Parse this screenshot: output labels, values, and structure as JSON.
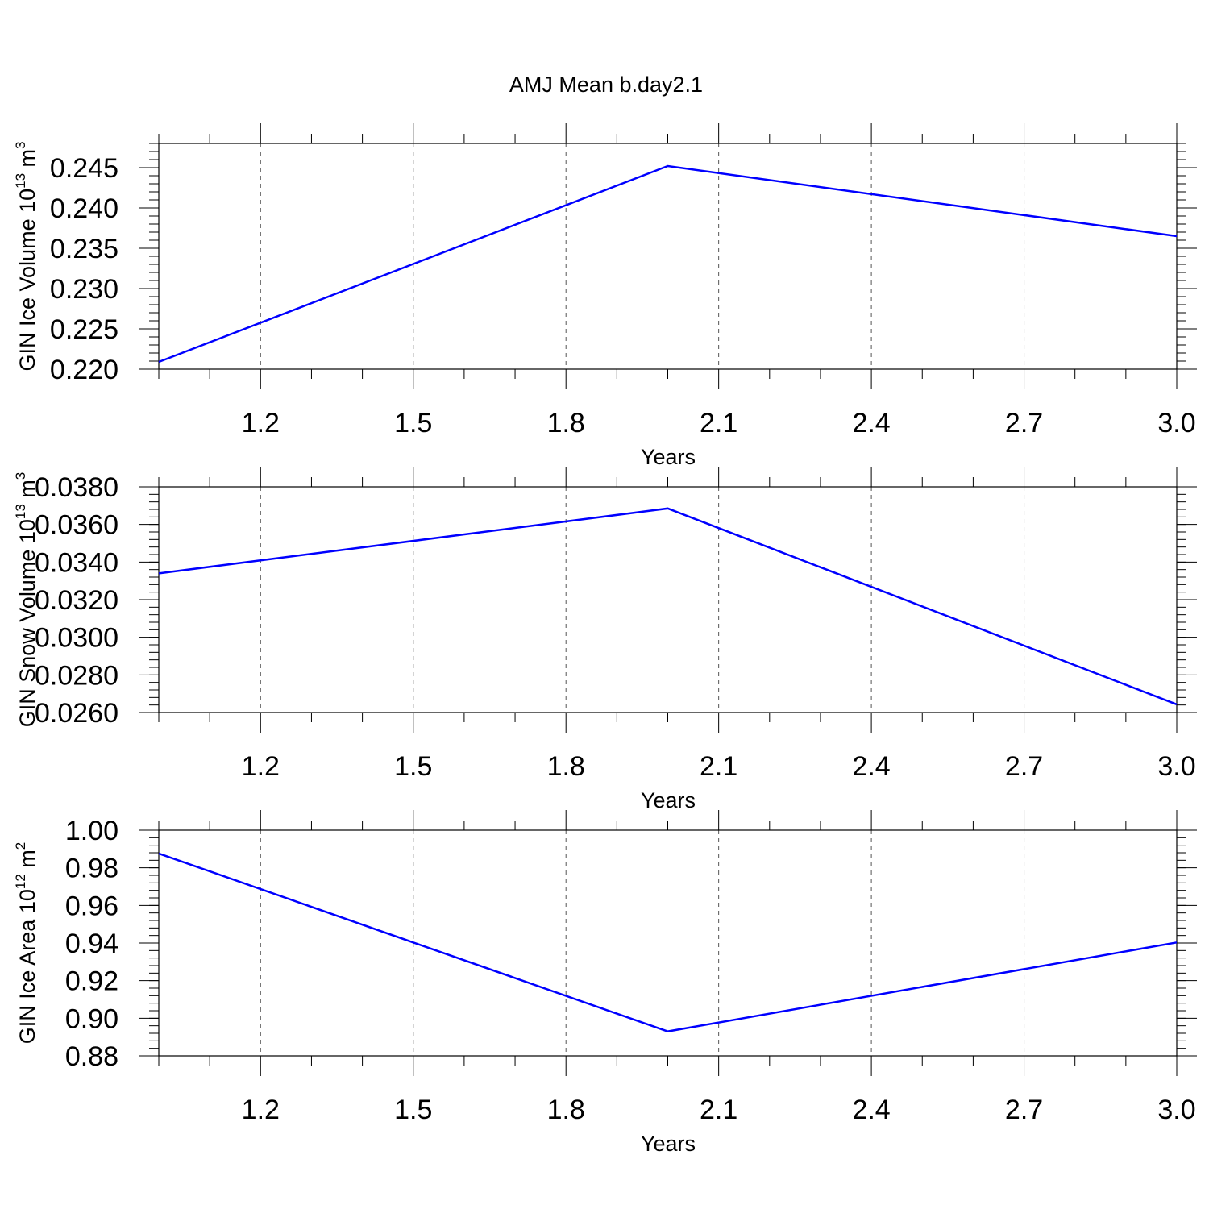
{
  "title": "AMJ Mean b.day2.1",
  "colors": {
    "line": "#0000ff",
    "axis": "#000000",
    "grid": "#555555"
  },
  "chart_data": [
    {
      "type": "line",
      "ylabel": "GIN Ice Volume 10",
      "ylabel_exp": "13",
      "ylabel_unit": " m",
      "ylabel_unit_exp": "3",
      "xlabel": "Years",
      "xlim": [
        1.0,
        3.0
      ],
      "ylim": [
        0.22,
        0.248
      ],
      "xticks": [
        1.2,
        1.5,
        1.8,
        2.1,
        2.4,
        2.7,
        3.0
      ],
      "xtick_labels": [
        "1.2",
        "1.5",
        "1.8",
        "2.1",
        "2.4",
        "2.7",
        "3.0"
      ],
      "yticks": [
        0.22,
        0.225,
        0.23,
        0.235,
        0.24,
        0.245
      ],
      "ytick_labels": [
        "0.220",
        "0.225",
        "0.230",
        "0.235",
        "0.240",
        "0.245"
      ],
      "ytick_minor": 0.001,
      "grid": "x-dashed",
      "series": [
        {
          "x": [
            1.0,
            2.0,
            3.0
          ],
          "y": [
            0.2209,
            0.2452,
            0.2365
          ]
        }
      ]
    },
    {
      "type": "line",
      "ylabel": "GIN Snow Volume 10",
      "ylabel_exp": "13",
      "ylabel_unit": " m",
      "ylabel_unit_exp": "3",
      "xlabel": "Years",
      "xlim": [
        1.0,
        3.0
      ],
      "ylim": [
        0.026,
        0.038
      ],
      "xticks": [
        1.2,
        1.5,
        1.8,
        2.1,
        2.4,
        2.7,
        3.0
      ],
      "xtick_labels": [
        "1.2",
        "1.5",
        "1.8",
        "2.1",
        "2.4",
        "2.7",
        "3.0"
      ],
      "yticks": [
        0.026,
        0.028,
        0.03,
        0.032,
        0.034,
        0.036,
        0.038
      ],
      "ytick_labels": [
        "0.0260",
        "0.0280",
        "0.0300",
        "0.0320",
        "0.0340",
        "0.0360",
        "0.0380"
      ],
      "ytick_minor": 0.0004,
      "grid": "x-dashed",
      "series": [
        {
          "x": [
            1.0,
            2.0,
            3.0
          ],
          "y": [
            0.0334,
            0.03685,
            0.02643
          ]
        }
      ]
    },
    {
      "type": "line",
      "ylabel": "GIN Ice Area 10",
      "ylabel_exp": "12",
      "ylabel_unit": " m",
      "ylabel_unit_exp": "2",
      "xlabel": "Years",
      "xlim": [
        1.0,
        3.0
      ],
      "ylim": [
        0.88,
        1.0
      ],
      "xticks": [
        1.2,
        1.5,
        1.8,
        2.1,
        2.4,
        2.7,
        3.0
      ],
      "xtick_labels": [
        "1.2",
        "1.5",
        "1.8",
        "2.1",
        "2.4",
        "2.7",
        "3.0"
      ],
      "yticks": [
        0.88,
        0.9,
        0.92,
        0.94,
        0.96,
        0.98,
        1.0
      ],
      "ytick_labels": [
        "0.88",
        "0.90",
        "0.92",
        "0.94",
        "0.96",
        "0.98",
        "1.00"
      ],
      "ytick_minor": 0.004,
      "grid": "x-dashed",
      "series": [
        {
          "x": [
            1.0,
            2.0,
            3.0
          ],
          "y": [
            0.9876,
            0.893,
            0.9403
          ]
        }
      ]
    }
  ]
}
